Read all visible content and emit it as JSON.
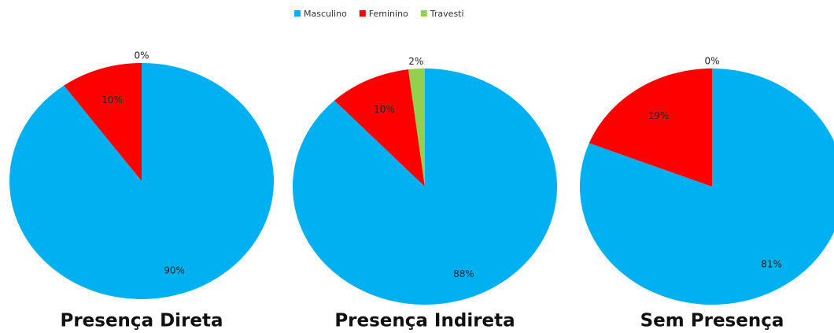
{
  "chart_data": [
    {
      "type": "pie",
      "title": "Presença Direta",
      "categories": [
        "Masculino",
        "Feminino",
        "Travesti"
      ],
      "colors": [
        "#00b0f0",
        "#ff0000",
        "#92d050"
      ],
      "values": [
        90,
        10,
        0
      ],
      "value_labels": [
        "90%",
        "10%",
        "0%"
      ]
    },
    {
      "type": "pie",
      "title": "Presença Indireta",
      "categories": [
        "Masculino",
        "Feminino",
        "Travesti"
      ],
      "colors": [
        "#00b0f0",
        "#ff0000",
        "#92d050"
      ],
      "values": [
        88,
        10,
        2
      ],
      "value_labels": [
        "88%",
        "10%",
        "2%"
      ]
    },
    {
      "type": "pie",
      "title": "Sem Presença",
      "categories": [
        "Masculino",
        "Feminino",
        "Travesti"
      ],
      "colors": [
        "#00b0f0",
        "#ff0000",
        "#92d050"
      ],
      "values": [
        81,
        19,
        0
      ],
      "value_labels": [
        "81%",
        "19%",
        "0%"
      ]
    }
  ]
}
